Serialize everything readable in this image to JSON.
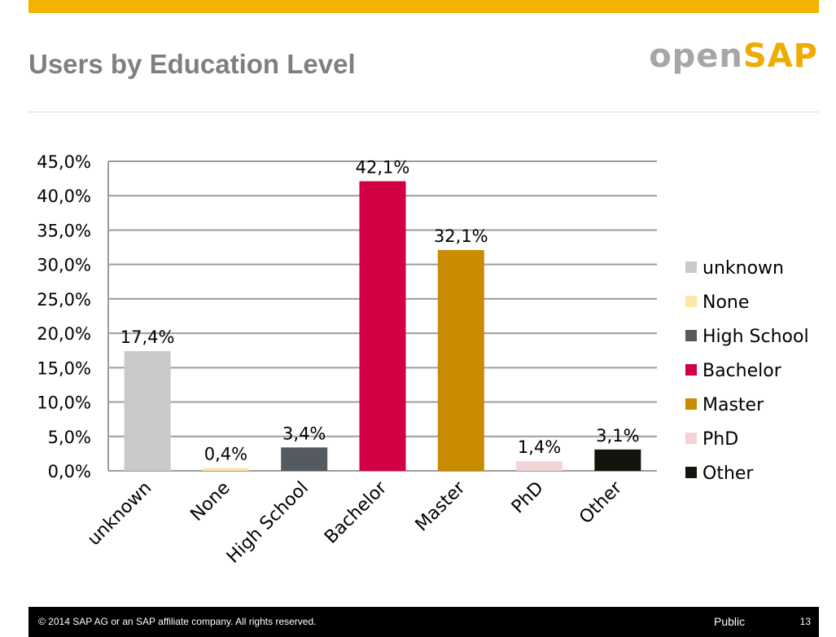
{
  "slide": {
    "title": "Users by Education Level",
    "logo_open": "open",
    "logo_sap": "SAP",
    "accent_color": "#f2b200"
  },
  "footer": {
    "copyright": "© 2014 SAP AG or an SAP affiliate company. All rights reserved.",
    "classification": "Public",
    "page_number": "13"
  },
  "chart_data": {
    "type": "bar",
    "categories": [
      "unknown",
      "None",
      "High School",
      "Bachelor",
      "Master",
      "PhD",
      "Other"
    ],
    "values": [
      17.4,
      0.4,
      3.4,
      42.1,
      32.1,
      1.4,
      3.1
    ],
    "data_labels": [
      "17,4%",
      "0,4%",
      "3,4%",
      "42,1%",
      "32,1%",
      "1,4%",
      "3,1%"
    ],
    "colors": [
      "#c9c9c9",
      "#fde6a6",
      "#555a60",
      "#d10042",
      "#c98c00",
      "#f2d3d8",
      "#14140e"
    ],
    "y_ticks": [
      0,
      5,
      10,
      15,
      20,
      25,
      30,
      35,
      40,
      45
    ],
    "y_tick_labels": [
      "0,0%",
      "5,0%",
      "10,0%",
      "15,0%",
      "20,0%",
      "25,0%",
      "30,0%",
      "35,0%",
      "40,0%",
      "45,0%"
    ],
    "ylim": [
      0,
      45
    ],
    "grid": true,
    "legend_position": "right",
    "legend": [
      "unknown",
      "None",
      "High School",
      "Bachelor",
      "Master",
      "PhD",
      "Other"
    ],
    "title": "",
    "xlabel": "",
    "ylabel": ""
  }
}
